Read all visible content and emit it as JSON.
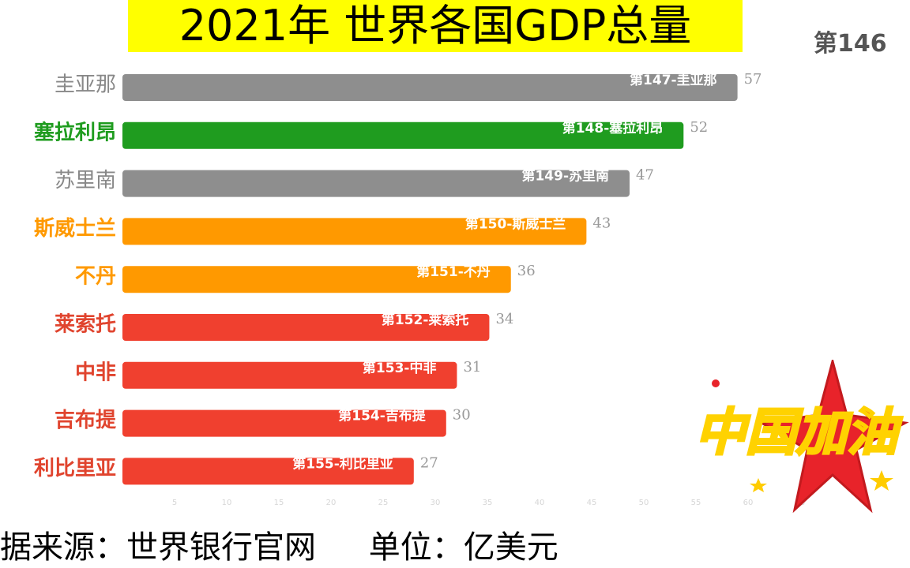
{
  "chart_data": {
    "type": "bar",
    "orientation": "horizontal",
    "title": "2021年 世界各国GDP总量",
    "categories": [
      "圭亚那",
      "塞拉利昂",
      "苏里南",
      "斯威士兰",
      "不丹",
      "莱索托",
      "中非",
      "吉布提",
      "利比里亚"
    ],
    "bar_labels": [
      "第147-圭亚那",
      "第148-塞拉利昂",
      "第149-苏里南",
      "第150-斯威士兰",
      "第151-不丹",
      "第152-莱索托",
      "第153-中非",
      "第154-吉布提",
      "第155-利比里亚"
    ],
    "values": [
      57,
      52,
      47,
      43,
      36,
      34,
      31,
      30,
      27
    ],
    "colors": [
      "#8e8e8e",
      "#1f9c1f",
      "#8e8e8e",
      "#ff9900",
      "#ff9900",
      "#f0402f",
      "#f0402f",
      "#f0402f",
      "#f0402f"
    ],
    "label_colors": [
      "#888888",
      "#1f9c1f",
      "#888888",
      "#ff9900",
      "#ff9900",
      "#e0442e",
      "#e0442e",
      "#e0442e",
      "#e0442e"
    ],
    "x_ticks": [
      5,
      10,
      15,
      20,
      25,
      30,
      35,
      40,
      45,
      50,
      55,
      60,
      65
    ],
    "xlim": [
      0,
      60
    ],
    "grid": false,
    "legend": "none"
  },
  "header": {
    "title": "2021年 世界各国GDP总量",
    "corner_label": "第146"
  },
  "footer": {
    "source": "据来源：世界银行官网",
    "unit": "单位：亿美元"
  },
  "badge": {
    "text": "中国加油"
  }
}
